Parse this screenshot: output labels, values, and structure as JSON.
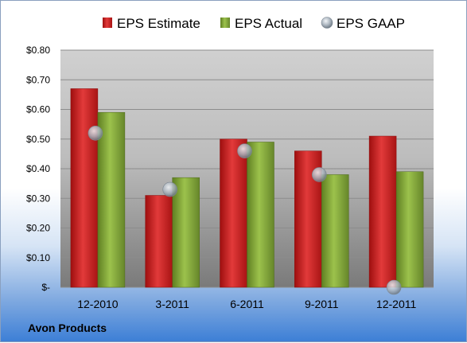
{
  "company": "Avon Products",
  "colors": {
    "estimate": "#d62020",
    "actual": "#8db03c",
    "gaap": "#b8c2cc"
  },
  "chart_data": {
    "type": "bar",
    "categories": [
      "12-2010",
      "3-2011",
      "6-2011",
      "9-2011",
      "12-2011"
    ],
    "series": [
      {
        "name": "EPS Estimate",
        "type": "bar",
        "values": [
          0.67,
          0.31,
          0.5,
          0.46,
          0.51
        ]
      },
      {
        "name": "EPS Actual",
        "type": "bar",
        "values": [
          0.59,
          0.37,
          0.49,
          0.38,
          0.39
        ]
      },
      {
        "name": "EPS GAAP",
        "type": "scatter",
        "values": [
          0.52,
          0.33,
          0.46,
          0.38,
          0.0
        ]
      }
    ],
    "ylim": [
      0,
      0.8
    ],
    "yticks": [
      0,
      0.1,
      0.2,
      0.3,
      0.4,
      0.5,
      0.6,
      0.7,
      0.8
    ],
    "ytick_labels": [
      "$-",
      "$0.10",
      "$0.20",
      "$0.30",
      "$0.40",
      "$0.50",
      "$0.60",
      "$0.70",
      "$0.80"
    ],
    "grid": true,
    "legend": "top"
  }
}
